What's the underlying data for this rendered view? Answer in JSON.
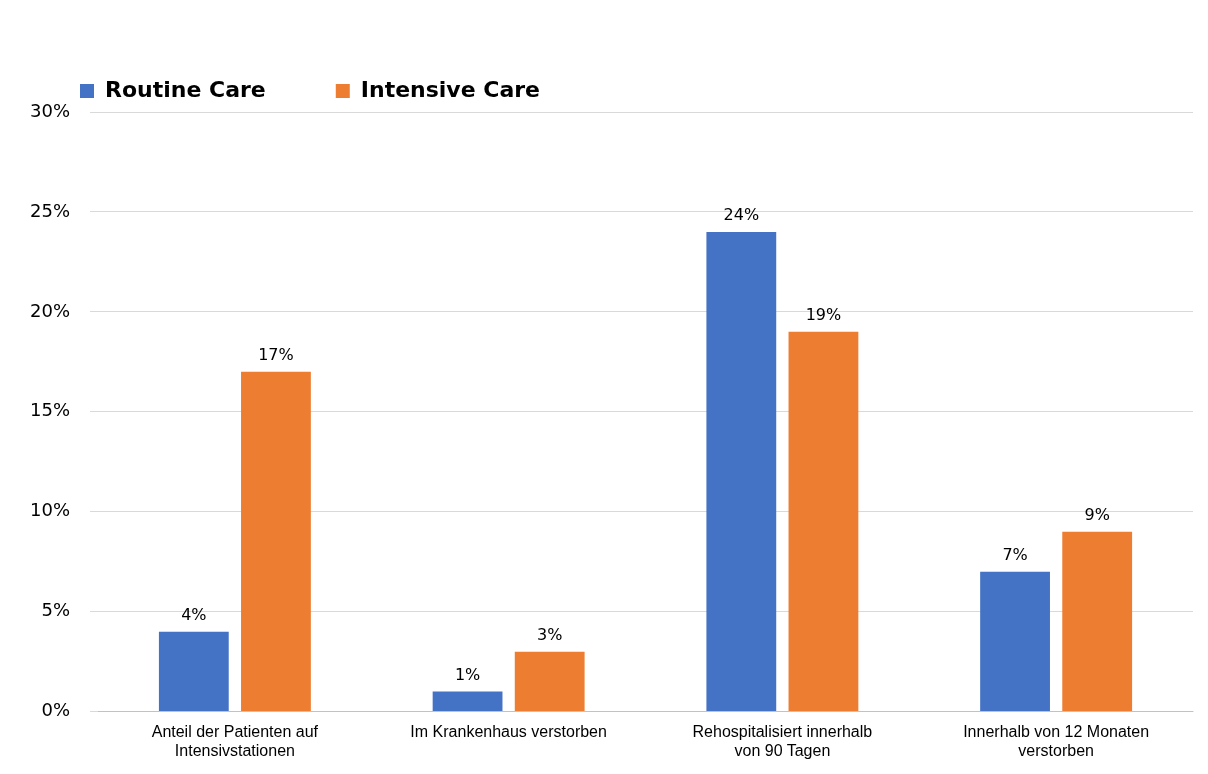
{
  "chart_data": {
    "type": "bar",
    "categories": [
      "Anteil der Patienten auf Intensivstationen",
      "Im Krankenhaus verstorben",
      "Rehospitalisiert innerhalb von 90 Tagen",
      "Innerhalb von 12 Monaten verstorben"
    ],
    "series": [
      {
        "name": "Routine Care",
        "color": "#4472c4",
        "values": [
          4,
          1,
          24,
          7
        ]
      },
      {
        "name": "Intensive Care",
        "color": "#ed7d31",
        "values": [
          17,
          3,
          19,
          9
        ]
      }
    ],
    "value_labels": [
      [
        "4%",
        "1%",
        "24%",
        "7%"
      ],
      [
        "17%",
        "3%",
        "19%",
        "9%"
      ]
    ],
    "ylim": [
      0,
      30
    ],
    "yticks": [
      {
        "value": 0,
        "label": "0%"
      },
      {
        "value": 5,
        "label": "5%"
      },
      {
        "value": 10,
        "label": "10%"
      },
      {
        "value": 15,
        "label": "15%"
      },
      {
        "value": 20,
        "label": "20%"
      },
      {
        "value": 25,
        "label": "25%"
      },
      {
        "value": 30,
        "label": "30%"
      }
    ],
    "grid": "y",
    "legend": "top left"
  }
}
